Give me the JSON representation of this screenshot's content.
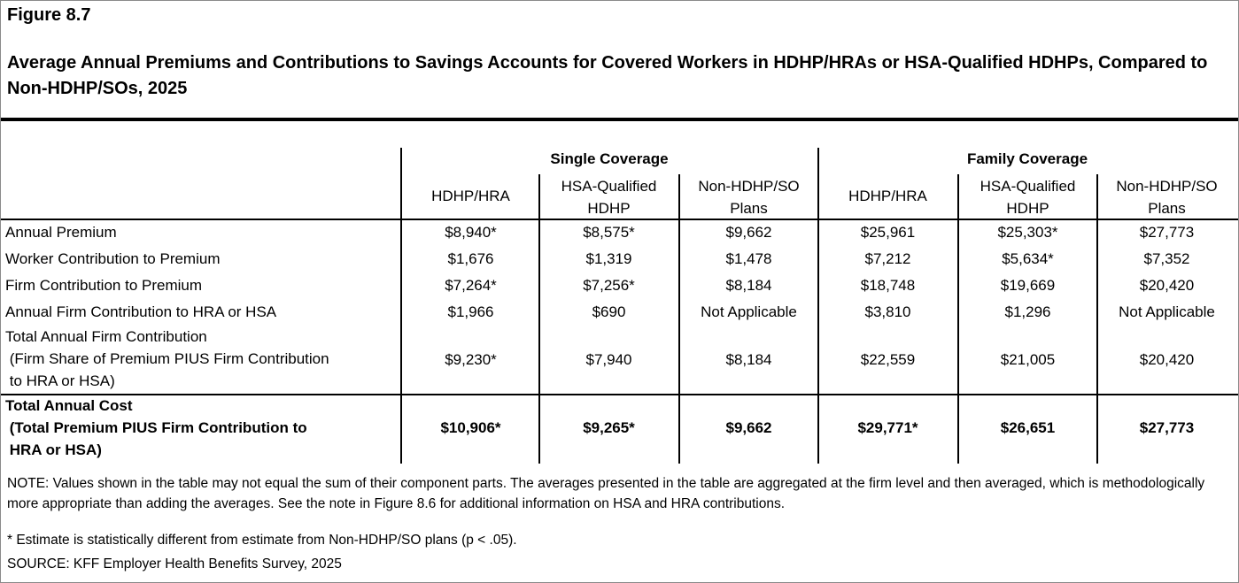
{
  "figure_label": "Figure 8.7",
  "title": "Average Annual Premiums and Contributions to Savings Accounts for Covered Workers in HDHP/HRAs or HSA-Qualified HDHPs, Compared to Non-HDHP/SOs, 2025",
  "groups": [
    "Single Coverage",
    "Family Coverage"
  ],
  "columns": [
    [
      "HDHP/HRA"
    ],
    [
      "HSA-Qualified",
      "HDHP"
    ],
    [
      "Non-HDHP/SO",
      "Plans"
    ],
    [
      "HDHP/HRA"
    ],
    [
      "HSA-Qualified",
      "HDHP"
    ],
    [
      "Non-HDHP/SO",
      "Plans"
    ]
  ],
  "rows": [
    {
      "label": [
        "Annual Premium"
      ],
      "values": [
        "$8,940*",
        "$8,575*",
        "$9,662",
        "$25,961",
        "$25,303*",
        "$27,773"
      ]
    },
    {
      "label": [
        "Worker Contribution to Premium"
      ],
      "values": [
        "$1,676",
        "$1,319",
        "$1,478",
        "$7,212",
        "$5,634*",
        "$7,352"
      ]
    },
    {
      "label": [
        "Firm Contribution to Premium"
      ],
      "values": [
        "$7,264*",
        "$7,256*",
        "$8,184",
        "$18,748",
        "$19,669",
        "$20,420"
      ]
    },
    {
      "label": [
        "Annual Firm Contribution to HRA or HSA"
      ],
      "values": [
        "$1,966",
        "$690",
        "Not Applicable",
        "$3,810",
        "$1,296",
        "Not Applicable"
      ]
    },
    {
      "label": [
        "Total Annual Firm Contribution",
        " (Firm Share of Premium PIUS Firm Contribution",
        " to HRA or HSA)"
      ],
      "values": [
        "$9,230*",
        "$7,940",
        "$8,184",
        "$22,559",
        "$21,005",
        "$20,420"
      ]
    }
  ],
  "total_row": {
    "label": [
      "Total Annual Cost",
      " (Total Premium PIUS Firm Contribution to",
      " HRA or HSA)"
    ],
    "values": [
      "$10,906*",
      "$9,265*",
      "$9,662",
      "$29,771*",
      "$26,651",
      "$27,773"
    ]
  },
  "note": "NOTE: Values shown in the table may not equal the sum of their component parts. The averages presented in the table are aggregated at the firm level and then averaged, which is methodologically more appropriate than adding the averages. See the note in Figure 8.6 for additional information on HSA and HRA contributions.",
  "asterisk_note": " * Estimate is statistically different from estimate from Non-HDHP/SO plans (p < .05).",
  "source": "SOURCE: KFF Employer Health Benefits Survey, 2025"
}
